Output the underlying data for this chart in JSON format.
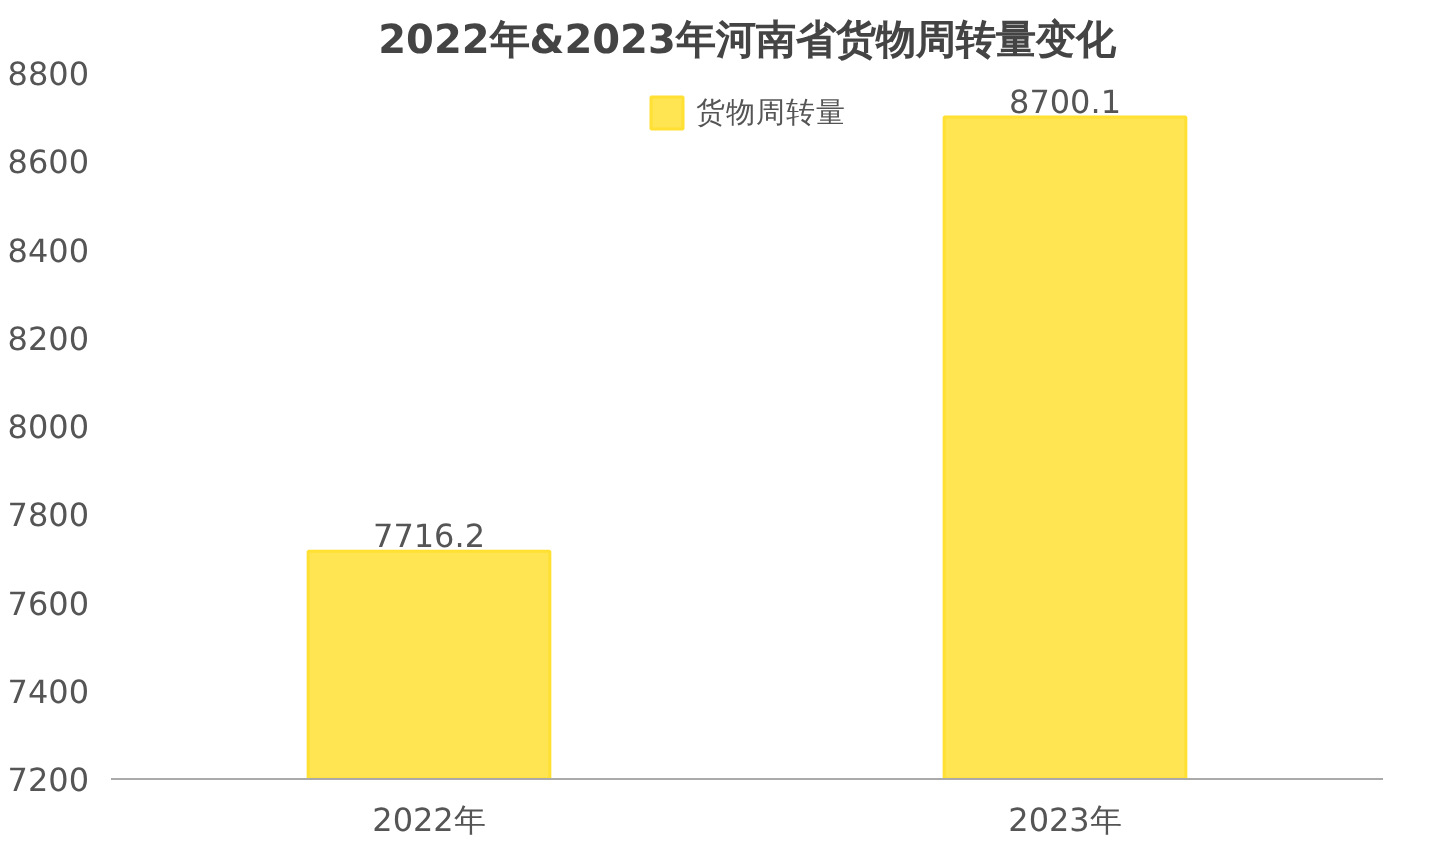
{
  "chart_data": {
    "type": "bar",
    "title": "2022年&2023年河南省货物周转量变化",
    "categories": [
      "2022年",
      "2023年"
    ],
    "series": [
      {
        "name": "货物周转量",
        "color": "#ffe033",
        "values": [
          7716.2,
          8700.1
        ]
      }
    ],
    "ylim": [
      7200,
      8800
    ],
    "yticks": [
      7200,
      7400,
      7600,
      7800,
      8000,
      8200,
      8400,
      8600,
      8800
    ],
    "data_labels": true,
    "legend": "top",
    "grid": false
  }
}
